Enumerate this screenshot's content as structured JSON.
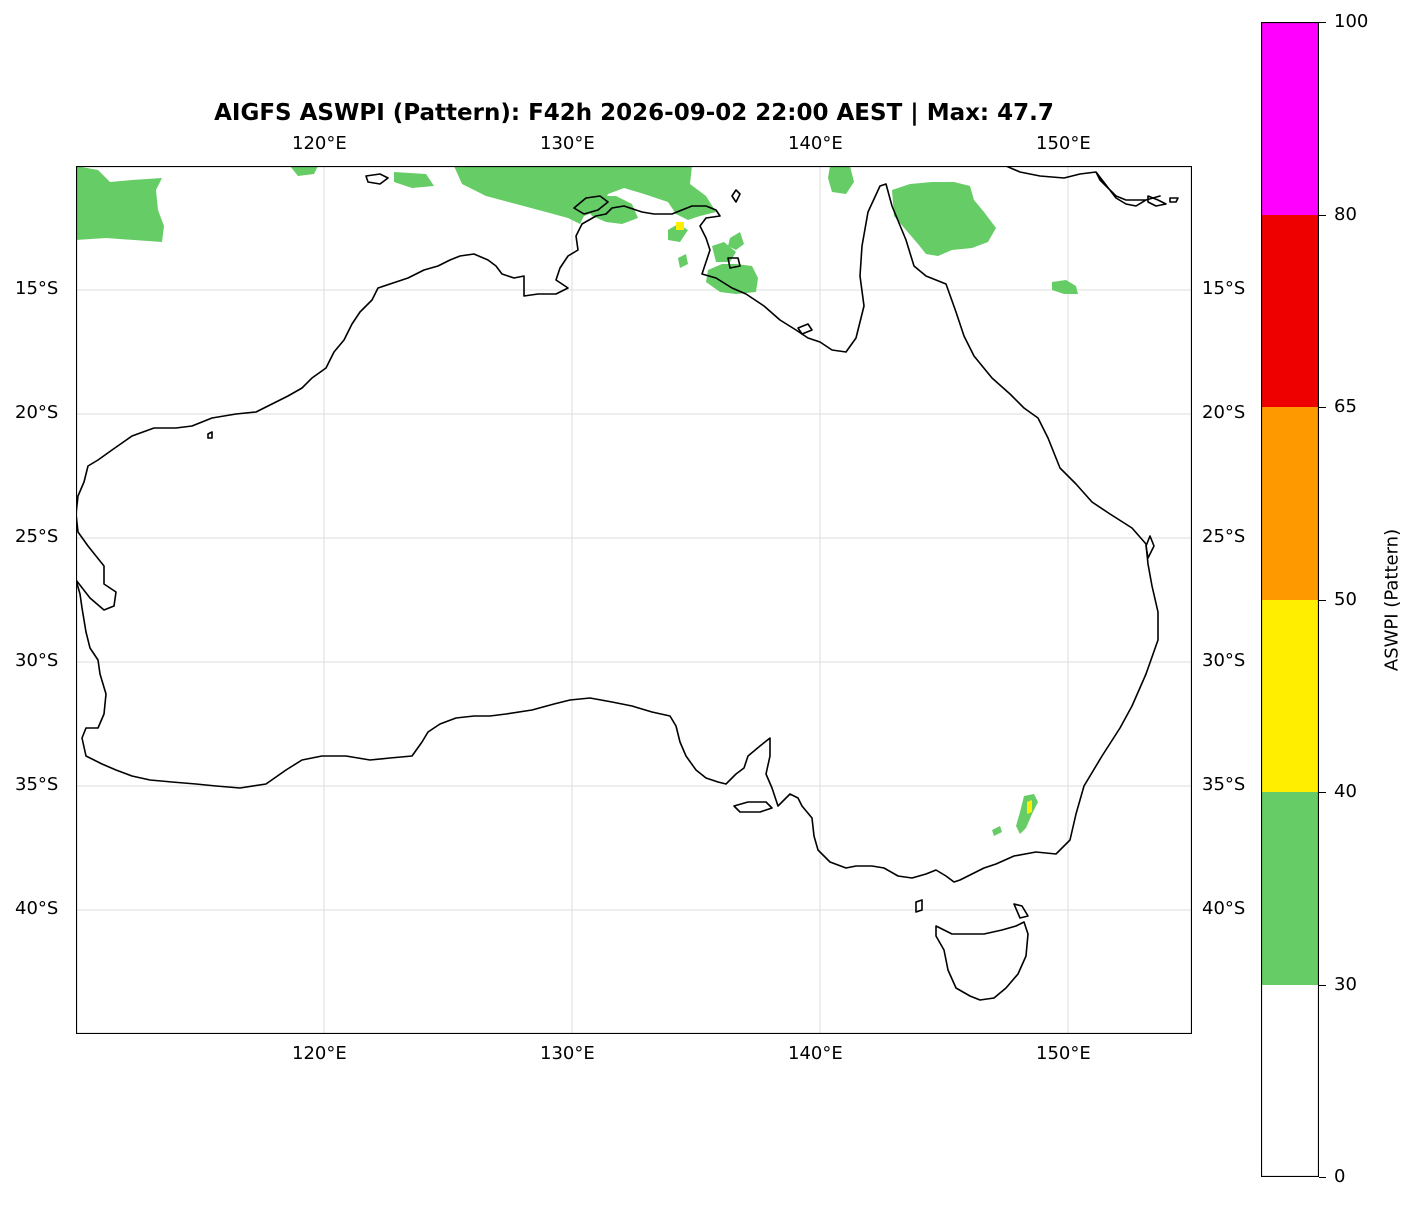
{
  "title": "AIGFS ASWPI (Pattern): F42h 2026-09-02 22:00 AEST | Max: 47.7",
  "map": {
    "extent": {
      "lon_min": 110,
      "lon_max": 155,
      "lat_min": -45,
      "lat_max": -10
    },
    "lon_ticks": [
      "120°E",
      "130°E",
      "140°E",
      "150°E"
    ],
    "lat_ticks": [
      "15°S",
      "20°S",
      "25°S",
      "30°S",
      "35°S",
      "40°S"
    ],
    "gridlines": true,
    "coastline_color": "#000000"
  },
  "colorbar": {
    "label": "ASWPI (Pattern)",
    "ticks": [
      "0",
      "30",
      "40",
      "50",
      "65",
      "80",
      "100"
    ],
    "bins": [
      {
        "from": 0,
        "to": 30,
        "color": "#ffffff"
      },
      {
        "from": 30,
        "to": 40,
        "color": "#66cc66"
      },
      {
        "from": 40,
        "to": 50,
        "color": "#ffee00"
      },
      {
        "from": 50,
        "to": 65,
        "color": "#ff9900"
      },
      {
        "from": 65,
        "to": 80,
        "color": "#ee0000"
      },
      {
        "from": 80,
        "to": 100,
        "color": "#ff00ff"
      }
    ]
  },
  "fields": {
    "green_color": "#66cc66",
    "yellow_color": "#ffee00"
  }
}
